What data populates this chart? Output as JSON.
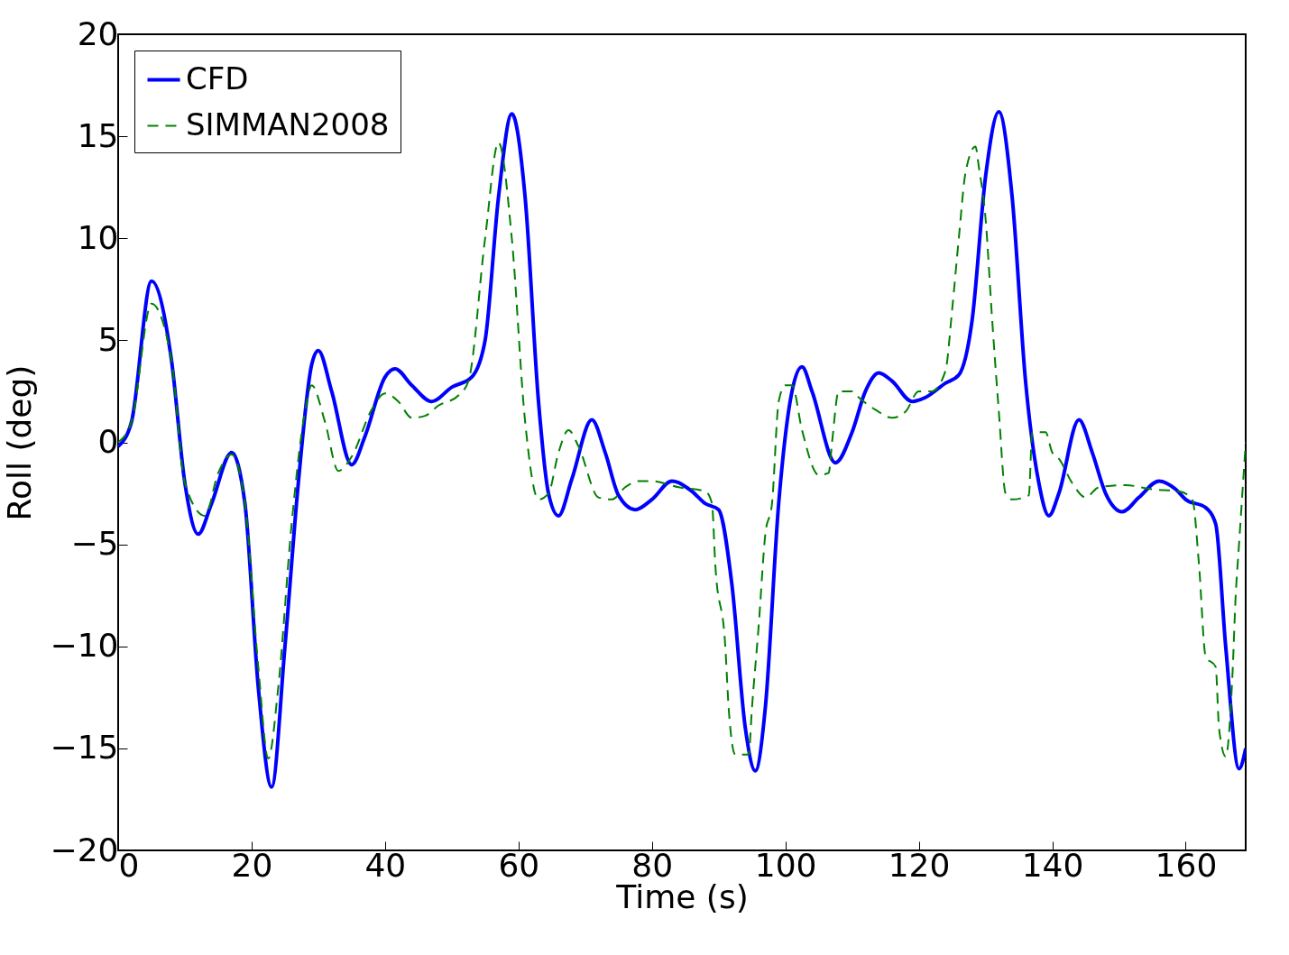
{
  "chart_data": {
    "type": "line",
    "xlabel": "Time (s)",
    "ylabel": "Roll (deg)",
    "xlim": [
      0,
      169
    ],
    "ylim": [
      -20,
      20
    ],
    "xticks": [
      0,
      20,
      40,
      60,
      80,
      100,
      120,
      140,
      160
    ],
    "yticks": [
      -20,
      -15,
      -10,
      -5,
      0,
      5,
      10,
      15,
      20
    ],
    "grid": false,
    "legend": "top left",
    "marker": "none",
    "series": [
      {
        "name": "CFD",
        "color": "#0000ff",
        "line_style": "solid",
        "x": [
          0,
          2,
          5,
          8,
          10,
          12,
          14,
          17,
          19,
          21,
          23,
          25,
          27,
          29,
          30,
          32,
          35,
          37,
          40,
          41.5,
          44,
          47,
          50,
          53,
          55,
          57,
          59,
          61,
          63,
          64.5,
          66,
          68,
          71,
          73,
          75,
          77.5,
          80,
          83,
          86,
          88,
          90,
          92,
          94,
          95.5,
          97,
          99,
          101,
          102.5,
          104,
          107.5,
          110,
          112,
          114,
          116,
          119,
          121,
          124,
          126,
          128,
          130,
          132,
          134,
          136,
          138,
          139.5,
          141,
          144,
          146,
          148,
          150.5,
          153,
          156,
          158.5,
          160,
          163,
          164.5,
          166,
          168,
          169
        ],
        "values": [
          -0.2,
          1,
          7.9,
          4,
          -2,
          -4.5,
          -3,
          -0.5,
          -3,
          -12,
          -16.9,
          -10,
          -2,
          3.8,
          4.5,
          2.5,
          -1.1,
          0.3,
          3.2,
          3.6,
          2.8,
          2,
          2.7,
          3.2,
          5,
          12,
          16.1,
          12,
          2,
          -2.5,
          -3.6,
          -1.8,
          1.1,
          -0.5,
          -2.6,
          -3.3,
          -2.8,
          -1.9,
          -2.4,
          -3,
          -3.3,
          -7,
          -14,
          -16.1,
          -13,
          -3,
          2.5,
          3.7,
          2.5,
          -1,
          0.5,
          2.5,
          3.4,
          3,
          2,
          2.2,
          2.9,
          3.3,
          6,
          13,
          16.2,
          12,
          3,
          -2,
          -3.6,
          -2.5,
          1.1,
          -0.5,
          -2.5,
          -3.4,
          -2.7,
          -1.9,
          -2.3,
          -2.8,
          -3.2,
          -4,
          -10,
          -16,
          -15
        ]
      },
      {
        "name": "SIMMAN2008",
        "color": "#008000",
        "line_style": "dashed",
        "x": [
          0,
          2,
          5,
          8,
          10,
          13,
          15,
          17,
          19,
          21,
          22.5,
          24,
          26,
          28,
          29,
          31,
          33,
          35,
          38,
          40,
          42,
          44,
          46,
          48,
          51,
          52.5,
          55,
          57,
          59,
          61,
          63,
          64.5,
          66,
          67.5,
          69,
          72,
          74,
          76,
          78,
          80,
          84,
          88,
          89,
          89.5,
          91,
          91.5,
          92.5,
          94.5,
          95,
          96,
          97,
          98,
          99,
          100,
          101,
          102.5,
          105,
          106.5,
          107,
          108,
          110,
          111,
          113.5,
          116,
          118,
          120,
          122,
          124,
          125,
          126,
          127,
          128.5,
          129,
          130,
          131,
          132,
          133,
          134,
          136.5,
          137,
          139,
          140,
          141,
          143,
          145,
          147,
          151,
          155,
          159,
          161,
          162,
          163,
          164.5,
          165,
          166,
          167,
          167.5,
          168,
          169
        ],
        "values": [
          0,
          1,
          6.8,
          4,
          -2,
          -3.6,
          -1.5,
          -0.6,
          -3,
          -11,
          -15.5,
          -12,
          -4,
          1.5,
          2.8,
          1,
          -1.4,
          -0.7,
          1.6,
          2.4,
          2,
          1.2,
          1.3,
          1.8,
          2.3,
          3,
          10,
          14.7,
          10,
          1,
          -2.8,
          -2.5,
          -0.5,
          0.6,
          -0.2,
          -2.7,
          -2.8,
          -2.2,
          -1.9,
          -1.9,
          -2.2,
          -2.4,
          -3,
          -6,
          -10,
          -13,
          -15.3,
          -15.3,
          -13,
          -9,
          -4.5,
          -3,
          2,
          2.8,
          2.8,
          0.6,
          -1.6,
          -1.5,
          0,
          2.5,
          2.5,
          2.2,
          1.6,
          1.2,
          1.5,
          2.5,
          2.5,
          3.5,
          6.5,
          10,
          13.2,
          14.5,
          13.5,
          11,
          6,
          1.5,
          -2.5,
          -2.8,
          -2.6,
          0.5,
          0.5,
          -0.5,
          -0.8,
          -2,
          -2.7,
          -2.2,
          -2.1,
          -2.3,
          -2.4,
          -2.8,
          -6,
          -10.5,
          -11,
          -14,
          -15.4,
          -11.5,
          -7.5,
          -5,
          0
        ]
      }
    ]
  }
}
